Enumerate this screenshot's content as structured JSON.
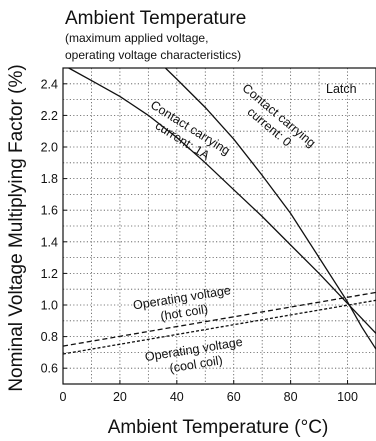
{
  "chart_data": {
    "type": "line",
    "title": "Ambient Temperature",
    "subtitle": [
      "(maximum applied voltage,",
      "operating voltage characteristics)"
    ],
    "xlabel": "Ambient Temperature (°C)",
    "ylabel": "Nominal Voltage Multiplying Factor (%)",
    "xlim": [
      0,
      110
    ],
    "ylim": [
      0.5,
      2.5
    ],
    "xticks": [
      0,
      20,
      40,
      60,
      80,
      100
    ],
    "yticks": [
      0.6,
      0.8,
      1.0,
      1.2,
      1.4,
      1.6,
      1.8,
      2.0,
      2.2,
      2.4
    ],
    "ytick_labels": [
      "0.6",
      "0.8",
      "1.0",
      "1.2",
      "1.4",
      "1.6",
      "1.8",
      "2.0",
      "2.2",
      "2.4"
    ],
    "grid": true,
    "corner_label": "Latch",
    "series": [
      {
        "name": "Contact carrying current: 0",
        "label_lines": [
          "Contact carrying",
          "current: 0"
        ],
        "style": "solid",
        "x": [
          36,
          40,
          50,
          60,
          70,
          80,
          90,
          100,
          105,
          110
        ],
        "y": [
          2.5,
          2.43,
          2.25,
          2.05,
          1.82,
          1.58,
          1.3,
          1.02,
          0.86,
          0.72
        ]
      },
      {
        "name": "Contact carrying current: 1A",
        "label_lines": [
          "Contact carrying",
          "current: 1A"
        ],
        "style": "solid",
        "x": [
          2,
          10,
          20,
          30,
          40,
          50,
          60,
          70,
          80,
          90,
          100,
          110
        ],
        "y": [
          2.5,
          2.42,
          2.32,
          2.2,
          2.06,
          1.9,
          1.73,
          1.56,
          1.38,
          1.2,
          1.01,
          0.82
        ]
      },
      {
        "name": "Operating voltage (hot coil)",
        "label_lines": [
          "Operating voltage",
          "(hot coil)"
        ],
        "style": "dash",
        "x": [
          0,
          110
        ],
        "y": [
          0.74,
          1.08
        ]
      },
      {
        "name": "Operating voltage (cool coil)",
        "label_lines": [
          "Operating voltage",
          "(cool coil)"
        ],
        "style": "dash-fine",
        "x": [
          0,
          110
        ],
        "y": [
          0.69,
          1.03
        ]
      }
    ]
  }
}
